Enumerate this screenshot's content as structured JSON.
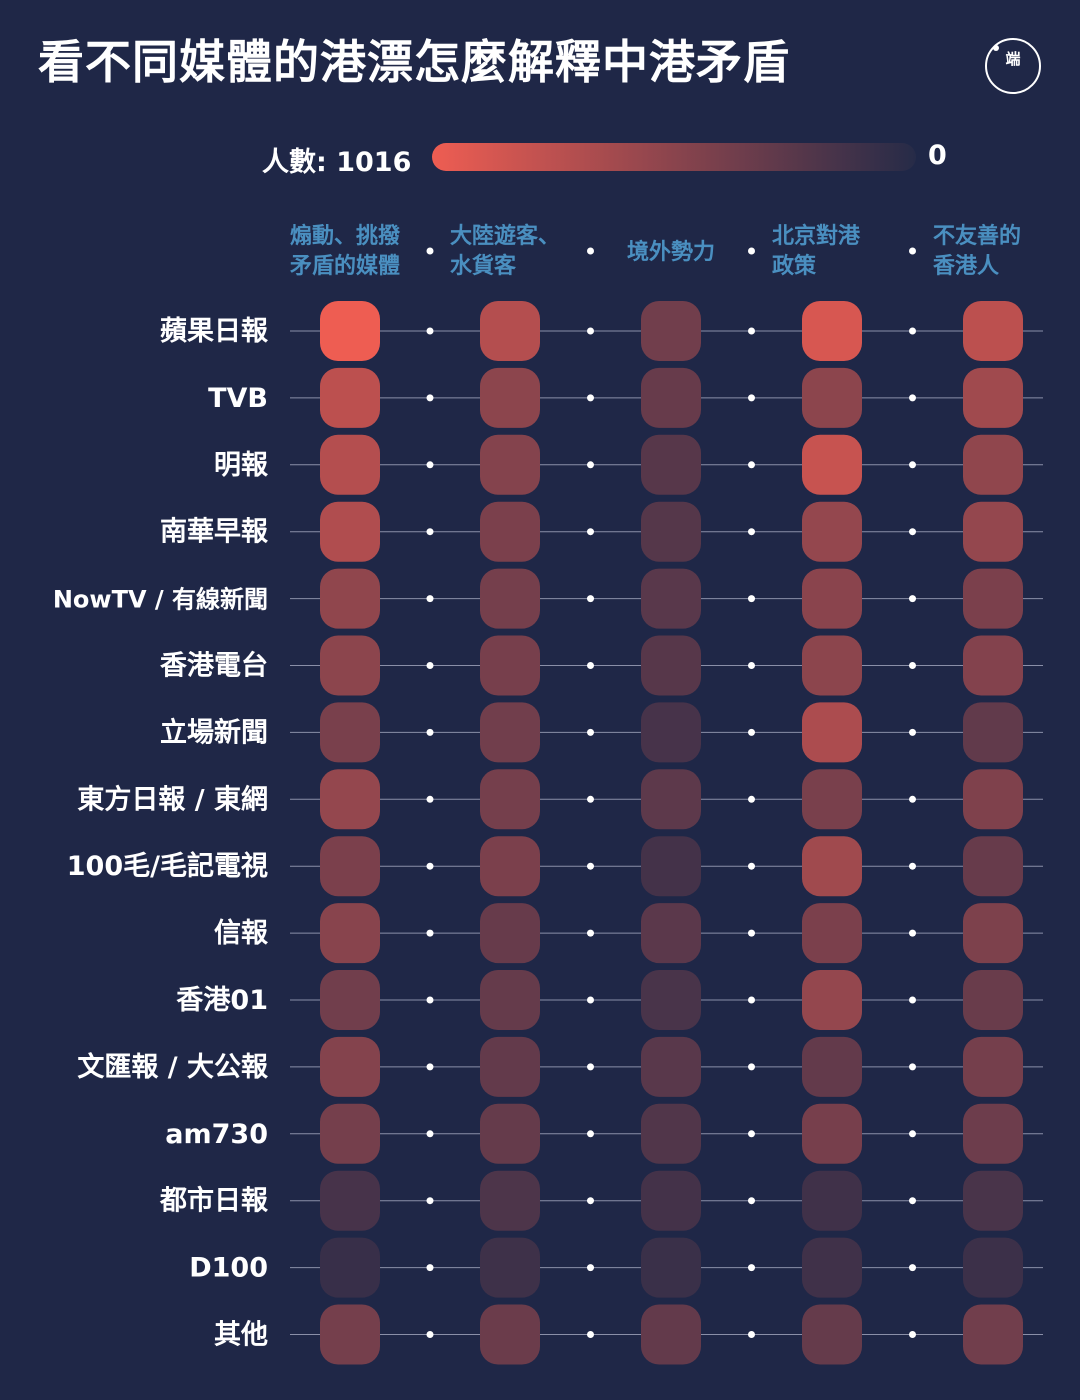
{
  "title": "看不同媒體的港漂怎麼解釋中港矛盾",
  "logo": {
    "text": "端"
  },
  "legend": {
    "label": "人數:",
    "max": "1016",
    "min": "0",
    "max_value": 1016,
    "min_value": 0
  },
  "colors": {
    "background": "#1f2747",
    "high": "#ee5d52",
    "low": "#262b48",
    "line": "#8a8fa8",
    "category": "#4a8fc0"
  },
  "chart_data": {
    "type": "heatmap",
    "title": "看不同媒體的港漂怎麼解釋中港矛盾",
    "categories": [
      [
        "煽動、挑撥",
        "矛盾的媒體"
      ],
      [
        "大陸遊客、",
        "水貨客"
      ],
      [
        "境外勢力"
      ],
      [
        "北京對港",
        "政策"
      ],
      [
        "不友善的",
        "香港人"
      ]
    ],
    "rows": [
      "蘋果日報",
      "TVB",
      "明報",
      "南華早報",
      "NowTV / 有線新聞",
      "香港電台",
      "立場新聞",
      "東方日報 / 東網",
      "100毛/毛記電視",
      "信報",
      "香港01",
      "文匯報 / 大公報",
      "am730",
      "都市日報",
      "D100",
      "其他"
    ],
    "values": [
      [
        1016,
        720,
        380,
        900,
        760
      ],
      [
        760,
        520,
        330,
        520,
        620
      ],
      [
        720,
        480,
        250,
        820,
        540
      ],
      [
        700,
        430,
        240,
        560,
        560
      ],
      [
        540,
        400,
        260,
        510,
        430
      ],
      [
        520,
        410,
        250,
        520,
        470
      ],
      [
        420,
        380,
        170,
        680,
        300
      ],
      [
        560,
        400,
        280,
        420,
        450
      ],
      [
        430,
        430,
        150,
        620,
        330
      ],
      [
        500,
        330,
        270,
        430,
        440
      ],
      [
        380,
        320,
        180,
        560,
        340
      ],
      [
        480,
        310,
        260,
        310,
        400
      ],
      [
        400,
        320,
        220,
        410,
        360
      ],
      [
        170,
        200,
        150,
        130,
        180
      ],
      [
        90,
        120,
        100,
        130,
        110
      ],
      [
        400,
        350,
        310,
        320,
        380
      ]
    ],
    "range": [
      0,
      1016
    ]
  }
}
